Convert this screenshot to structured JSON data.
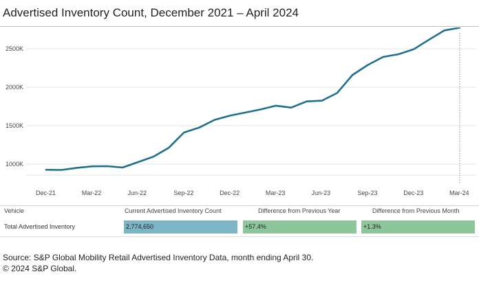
{
  "chart_data": {
    "type": "line",
    "title": "Advertised Inventory Count, December 2021 – April 2024",
    "xlabel": "",
    "ylabel": "",
    "ylim": [
      900,
      2850
    ],
    "y_ticks": [
      1000,
      1500,
      2000,
      2500
    ],
    "y_tick_labels": [
      "1000K",
      "1500K",
      "2000K",
      "2500K"
    ],
    "x_tick_labels": [
      "Dec-21",
      "Mar-22",
      "Jun-22",
      "Sep-22",
      "Dec-22",
      "Mar-23",
      "Jun-23",
      "Sep-23",
      "Dec-23",
      "Mar-24"
    ],
    "x_tick_index": [
      0,
      3,
      6,
      9,
      12,
      15,
      18,
      21,
      24,
      27
    ],
    "series": [
      {
        "name": "Total Advertised Inventory",
        "color": "#1f6e8c",
        "values": [
          925,
          922,
          950,
          970,
          972,
          955,
          1025,
          1095,
          1210,
          1410,
          1475,
          1575,
          1630,
          1670,
          1710,
          1760,
          1735,
          1815,
          1825,
          1925,
          2160,
          2290,
          2395,
          2430,
          2495,
          2620,
          2740,
          2774.65
        ]
      }
    ],
    "colors": {
      "line": "#1f6e8c",
      "grid": "#e3e3e3",
      "dotted": "#888888"
    }
  },
  "table": {
    "headers": [
      "Vehicle",
      "Current Advertised Inventory Count",
      "Difference from Previous Year",
      "Difference from Previous Month"
    ],
    "row": {
      "vehicle": "Total Advertised Inventory",
      "count": "2,774,650",
      "yoy": "+57.4%",
      "mom": "+1.3%"
    },
    "colors": {
      "count": "#7db5c7",
      "yoy": "#8cc69a",
      "mom": "#8cc69a"
    }
  },
  "footer": {
    "source": "Source: S&P Global Mobility Retail Advertised Inventory Data, month ending April 30.",
    "copyright": "© 2024 S&P Global."
  }
}
